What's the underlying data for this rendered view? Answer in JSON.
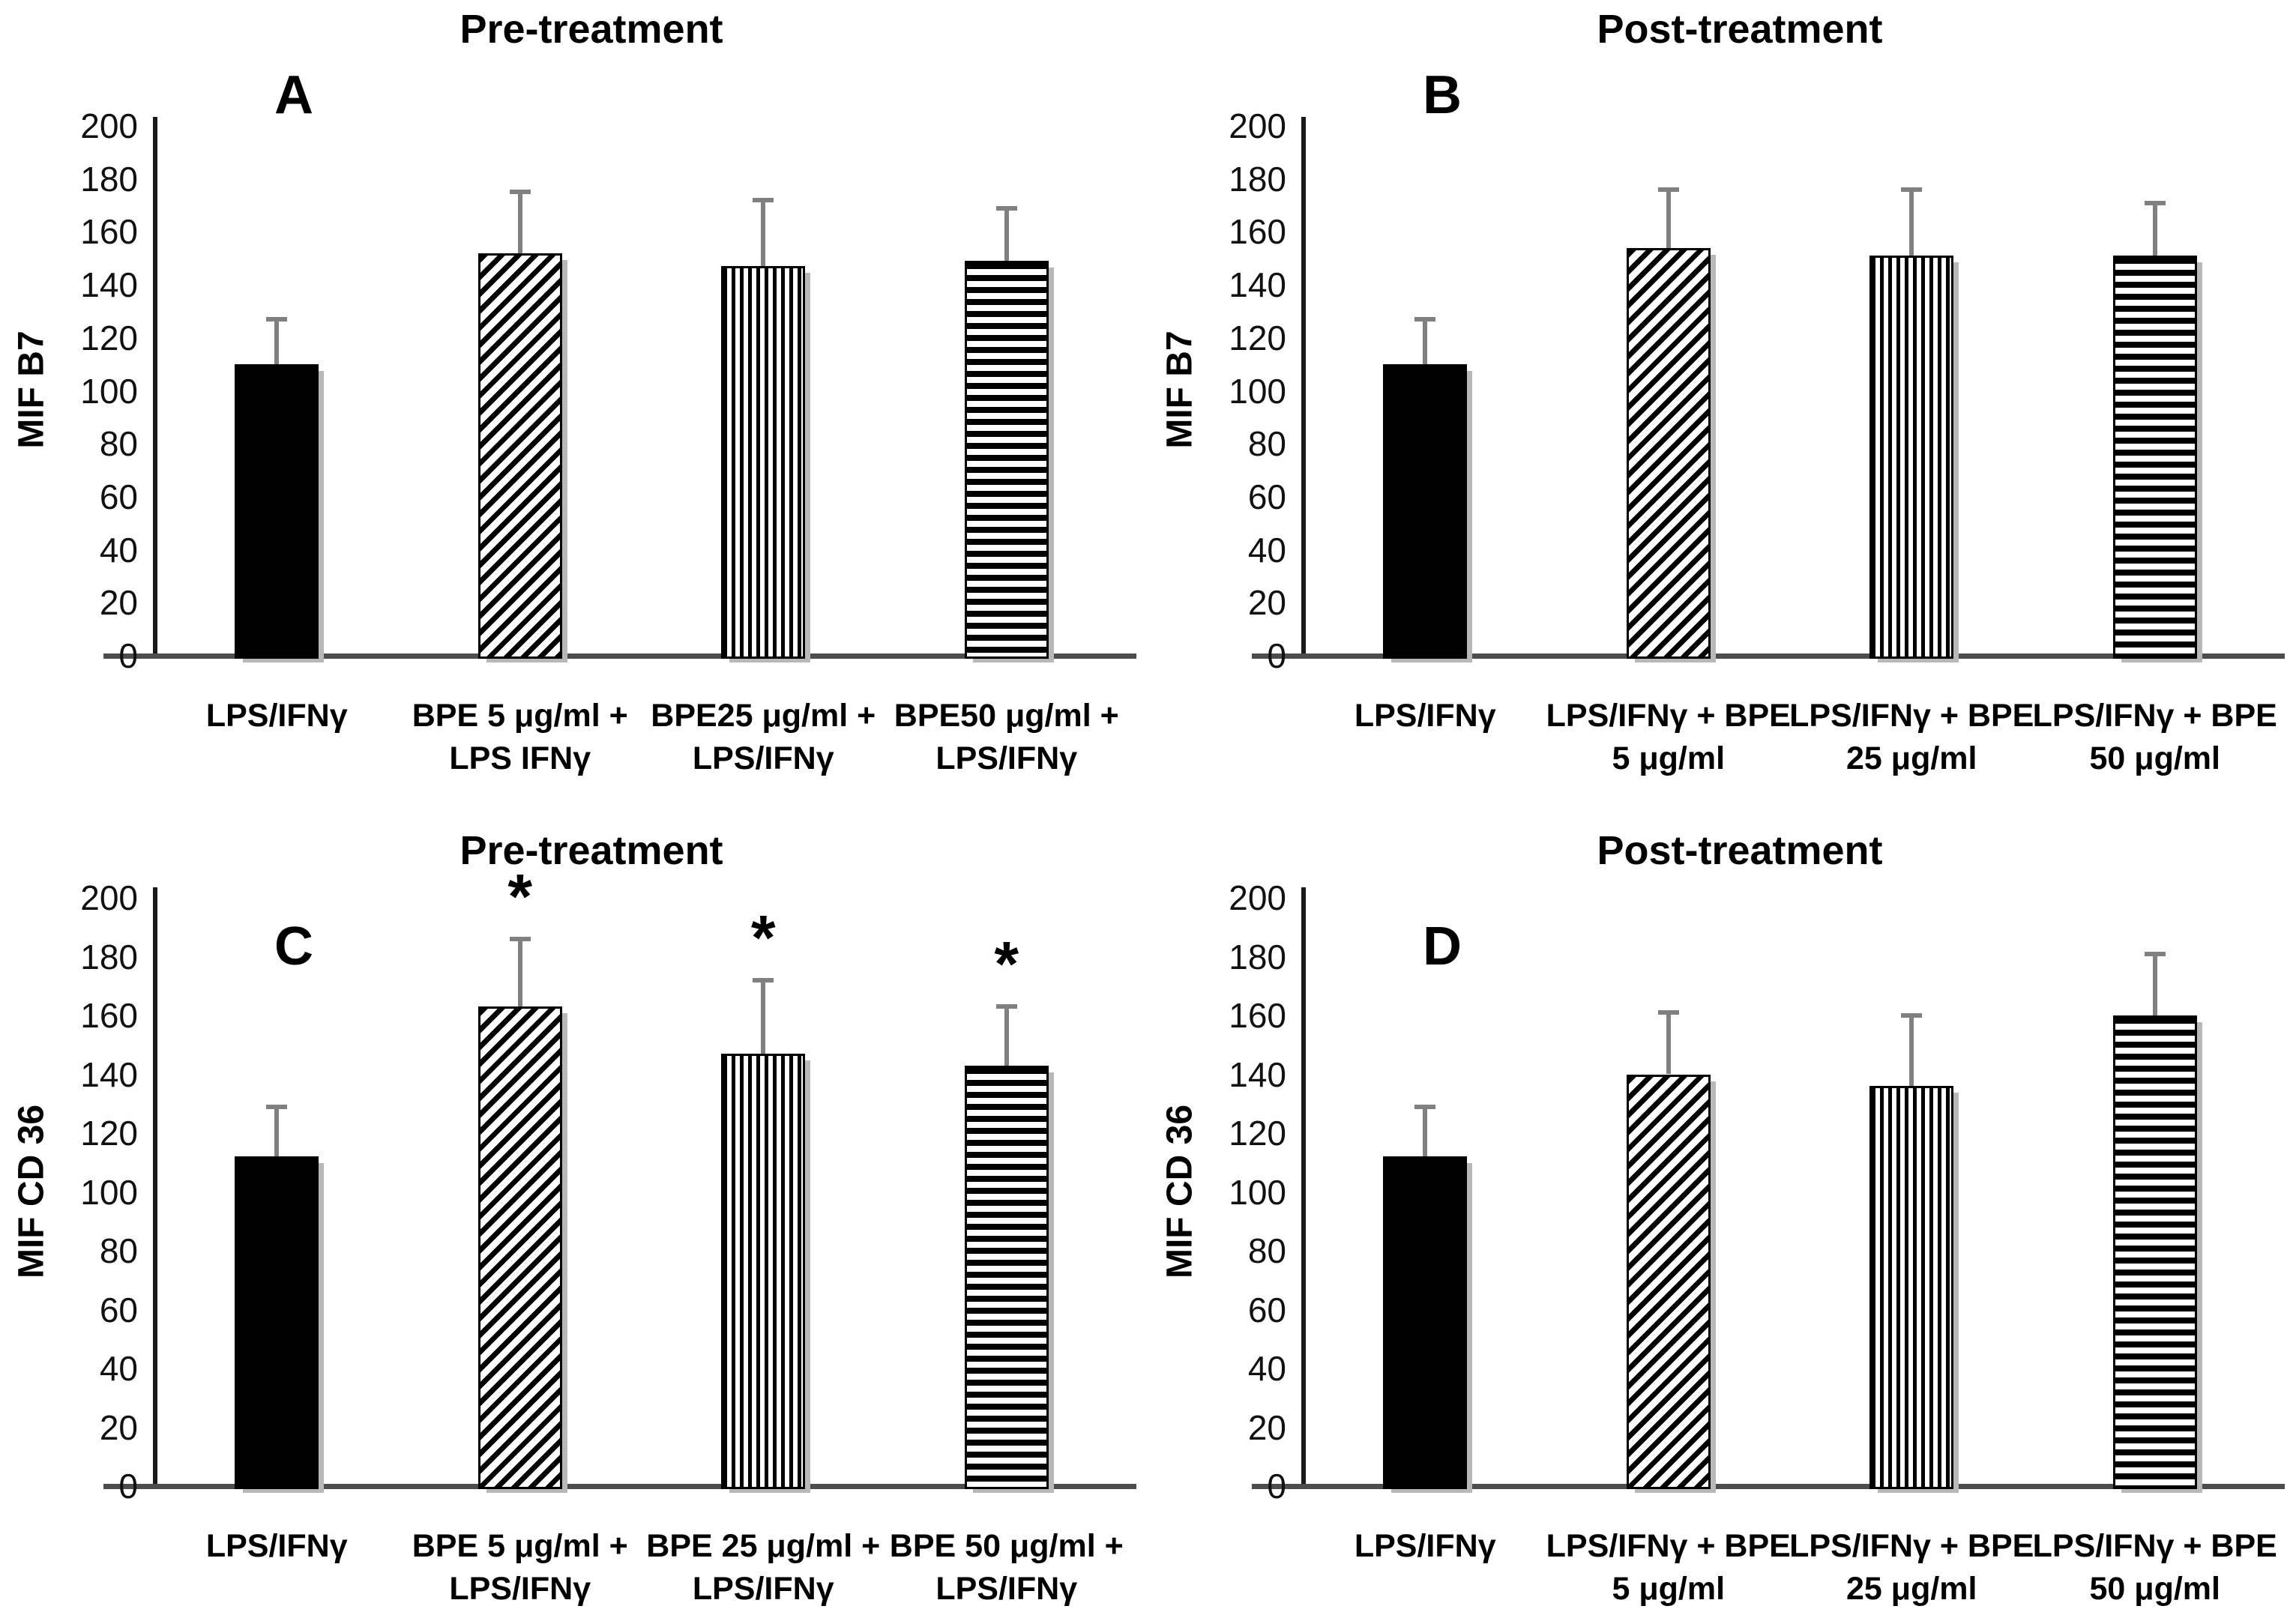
{
  "colors": {
    "bar_fill": "#000000",
    "bar_outline": "#000000",
    "error_bar": "#808080",
    "axis": "#1a1a1a",
    "baseline": "#4d4d4d",
    "text": "#000000",
    "background": "#ffffff"
  },
  "chart_data": [
    {
      "type": "bar",
      "panel_letter": "A",
      "title": "Pre-treatment",
      "ylabel": "MIF B7",
      "ylim": [
        0,
        200
      ],
      "ytick_step": 20,
      "ytick_labels": [
        "0",
        "20",
        "40",
        "60",
        "80",
        "100",
        "120",
        "140",
        "160",
        "180",
        "200"
      ],
      "categories": [
        [
          "LPS/IFNγ"
        ],
        [
          "BPE 5 μg/ml +",
          "LPS IFNγ"
        ],
        [
          "BPE25 μg/ml +",
          "LPS/IFNγ"
        ],
        [
          "BPE50 μg/ml +",
          "LPS/IFNγ"
        ]
      ],
      "values": [
        110,
        152,
        147,
        149
      ],
      "error_tops": [
        127,
        175,
        172,
        169
      ],
      "significance": [
        "",
        "",
        "",
        ""
      ],
      "patterns": [
        "solid-black",
        "diagonal-hatch",
        "vertical-stripes",
        "horizontal-stripes"
      ],
      "grid": false,
      "legend": null
    },
    {
      "type": "bar",
      "panel_letter": "B",
      "title": "Post-treatment",
      "ylabel": "MIF B7",
      "ylim": [
        0,
        200
      ],
      "ytick_step": 20,
      "ytick_labels": [
        "0",
        "20",
        "40",
        "60",
        "80",
        "100",
        "120",
        "140",
        "160",
        "180",
        "200"
      ],
      "categories": [
        [
          "LPS/IFNγ"
        ],
        [
          "LPS/IFNγ + BPE",
          "5 μg/ml"
        ],
        [
          "LPS/IFNγ + BPE",
          "25 μg/ml"
        ],
        [
          "LPS/IFNγ + BPE",
          "50 μg/ml"
        ]
      ],
      "values": [
        110,
        154,
        151,
        151
      ],
      "error_tops": [
        127,
        176,
        176,
        171
      ],
      "significance": [
        "",
        "",
        "",
        ""
      ],
      "patterns": [
        "solid-black",
        "diagonal-hatch",
        "vertical-stripes",
        "horizontal-stripes"
      ],
      "grid": false,
      "legend": null
    },
    {
      "type": "bar",
      "panel_letter": "C",
      "title": "Pre-treatment",
      "ylabel": "MIF CD 36",
      "ylim": [
        0,
        200
      ],
      "ytick_step": 20,
      "ytick_labels": [
        "0",
        "20",
        "40",
        "60",
        "80",
        "100",
        "120",
        "140",
        "160",
        "180",
        "200"
      ],
      "categories": [
        [
          "LPS/IFNγ"
        ],
        [
          "BPE 5 μg/ml +",
          "LPS/IFNγ"
        ],
        [
          "BPE 25 μg/ml +",
          "LPS/IFNγ"
        ],
        [
          "BPE 50 μg/ml +",
          "LPS/IFNγ"
        ]
      ],
      "values": [
        112,
        163,
        147,
        143
      ],
      "error_tops": [
        129,
        186,
        172,
        163
      ],
      "significance": [
        "",
        "*",
        "*",
        "*"
      ],
      "patterns": [
        "solid-black",
        "diagonal-hatch",
        "vertical-stripes",
        "horizontal-stripes"
      ],
      "grid": false,
      "legend": null
    },
    {
      "type": "bar",
      "panel_letter": "D",
      "title": "Post-treatment",
      "ylabel": "MIF CD 36",
      "ylim": [
        0,
        200
      ],
      "ytick_step": 20,
      "ytick_labels": [
        "0",
        "20",
        "40",
        "60",
        "80",
        "100",
        "120",
        "140",
        "160",
        "180",
        "200"
      ],
      "categories": [
        [
          "LPS/IFNγ"
        ],
        [
          "LPS/IFNγ + BPE",
          "5  μg/ml"
        ],
        [
          "LPS/IFNγ + BPE",
          "25  μg/ml"
        ],
        [
          "LPS/IFNγ + BPE",
          "50  μg/ml"
        ]
      ],
      "values": [
        112,
        140,
        136,
        160
      ],
      "error_tops": [
        129,
        161,
        160,
        181
      ],
      "significance": [
        "",
        "",
        "",
        ""
      ],
      "patterns": [
        "solid-black",
        "diagonal-hatch",
        "vertical-stripes",
        "horizontal-stripes"
      ],
      "grid": false,
      "legend": null
    }
  ]
}
